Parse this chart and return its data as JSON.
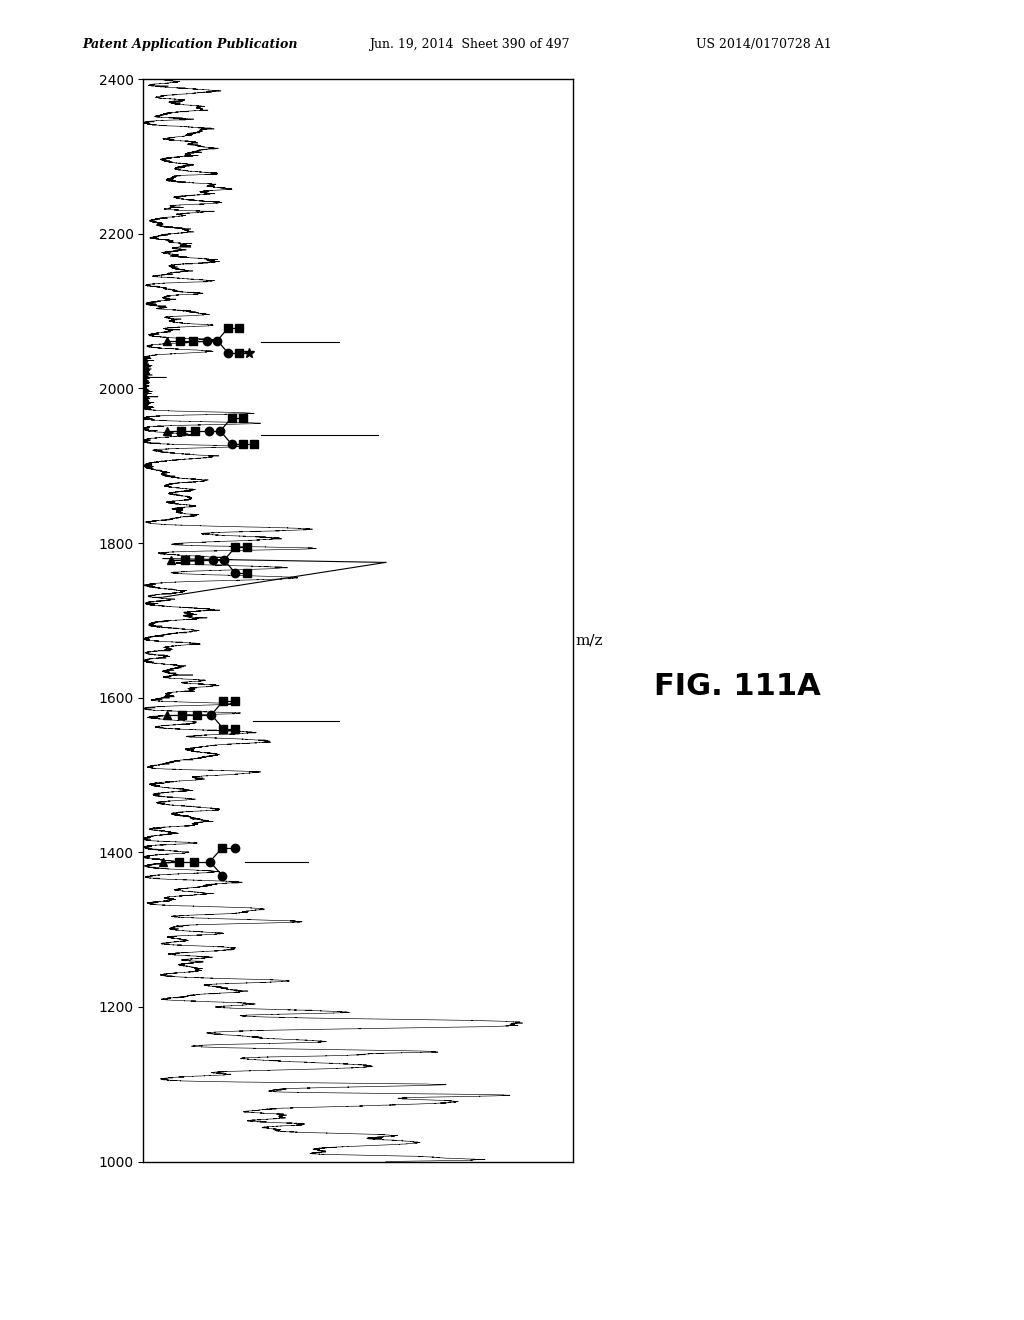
{
  "title": "FIG. 111A",
  "xlabel": "m/z",
  "ylabel": "",
  "ylim": [
    1000,
    2400
  ],
  "xlim": [
    0,
    1.0
  ],
  "yticks": [
    1000,
    1200,
    1400,
    1600,
    1800,
    2000,
    2200,
    2400
  ],
  "background_color": "#ffffff",
  "plot_bg_color": "#ffffff",
  "header_left": "Patent Application Publication",
  "header_center": "Jun. 19, 2014  Sheet 390 of 497",
  "header_right": "US 2014/0170728 A1",
  "noise_level": 0.015,
  "fig_label": "FIG. 111A"
}
